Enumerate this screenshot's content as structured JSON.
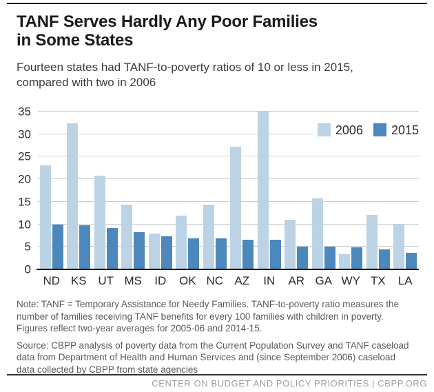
{
  "header": {
    "title": "TANF Serves Hardly Any Poor Families\nin Some States",
    "subtitle": "Fourteen states had TANF-to-poverty ratios of 10 or less in 2015,\ncompared with two in 2006"
  },
  "chart_data": {
    "type": "bar",
    "categories": [
      "ND",
      "KS",
      "UT",
      "MS",
      "ID",
      "OK",
      "NC",
      "AZ",
      "IN",
      "AR",
      "GA",
      "WY",
      "TX",
      "LA"
    ],
    "series": [
      {
        "name": "2006",
        "color": "#bcd3e6",
        "values": [
          23.1,
          32.4,
          20.8,
          14.3,
          8.0,
          11.9,
          14.3,
          27.2,
          35.0,
          11.0,
          15.8,
          3.4,
          12.1,
          10.1
        ]
      },
      {
        "name": "2015",
        "color": "#4d88bd",
        "values": [
          10.0,
          9.8,
          9.1,
          8.2,
          7.3,
          6.9,
          6.9,
          6.5,
          6.5,
          5.1,
          5.0,
          4.9,
          4.5,
          3.6
        ]
      }
    ],
    "title": "TANF Serves Hardly Any Poor Families in Some States",
    "xlabel": "",
    "ylabel": "",
    "ylim": [
      0,
      35
    ],
    "yticks": [
      0,
      5,
      10,
      15,
      20,
      25,
      30,
      35
    ],
    "grid": "horizontal",
    "legend_position": "top-right"
  },
  "notes": {
    "note": "Note: TANF = Temporary Assistance for Needy Families. TANF-to-poverty ratio measures the number of families receiving TANF benefits for every 100 families with children in poverty. Figures reflect two-year averages for 2005-06 and 2014-15.",
    "source": "Source: CBPP analysis of poverty data from the Current Population Survey and TANF caseload data from Department of Health and Human Services and (since September 2006) caseload data collected by CBPP from state agencies"
  },
  "footer": {
    "text": "CENTER ON BUDGET AND POLICY PRIORITIES | CBPP.ORG"
  },
  "colors": {
    "bar_2006": "#bcd3e6",
    "bar_2015": "#4d88bd",
    "gridline": "#cccccc",
    "baseline": "#141414"
  }
}
